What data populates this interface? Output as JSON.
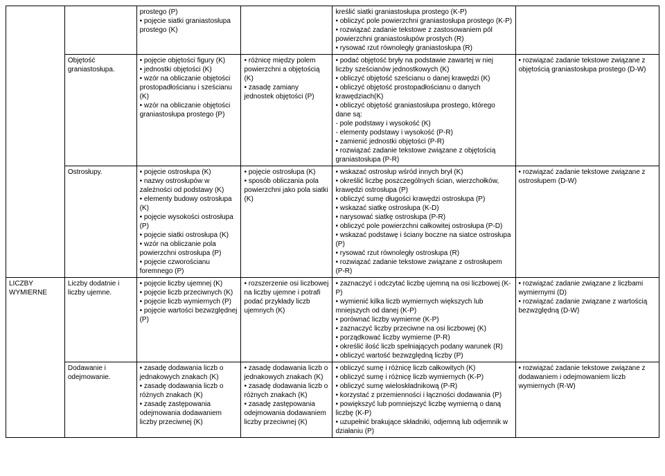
{
  "rows": {
    "r0": {
      "c1": "",
      "c2": "",
      "c3": "prostego (P)\n• pojęcie siatki graniastosłupa prostego (K)",
      "c4": "",
      "c5": "kreślić siatki graniastosłupa prostego (K-P)\n• obliczyć pole powierzchni graniastosłupa prostego (K-P)\n• rozwiązać zadanie tekstowe z zastosowaniem pól powierzchni graniastosłupów prostych (R)\n• rysować rzut równoległy graniastosłupa (R)",
      "c6": ""
    },
    "r1": {
      "c1": "",
      "c2": "Objętość graniastosłupa.",
      "c3": "• pojęcie objętości figury (K)\n• jednostki objętości (K)\n• wzór na obliczanie objętości prostopadłościanu i sześcianu (K)\n• wzór na obliczanie objętości graniastosłupa prostego (P)",
      "c4": "• różnicę między polem powierzchni a objętością (K)\n• zasadę zamiany jednostek objętości (P)",
      "c5": "• podać objętość bryły na podstawie zawartej w niej liczby sześcianów jednostkowych (K)\n• obliczyć objętość sześcianu o danej krawędzi (K)\n• obliczyć objętość prostopadłościanu o danych krawędziach(K)\n• obliczyć objętość graniastosłupa prostego, którego dane są:\n- pole podstawy i wysokość (K)\n- elementy podstawy i wysokość (P-R)\n• zamienić jednostki objętości (P-R)\n• rozwiązać zadanie tekstowe związane z objętością graniastosłupa (P-R)",
      "c6": "• rozwiązać zadanie tekstowe związane z objętością graniastosłupa prostego (D-W)"
    },
    "r2": {
      "c1": "",
      "c2": "Ostrosłupy.",
      "c3": "• pojęcie ostrosłupa (K)\n• nazwy ostrosłupów w zależności od podstawy (K)\n• elementy budowy ostrosłupa (K)\n• pojęcie wysokości ostrosłupa (P)\n• pojęcie siatki ostrosłupa (K)\n• wzór na obliczanie pola powierzchni ostrosłupa (P)\n• pojęcie czworościanu foremnego (P)",
      "c4": "• pojęcie ostrosłupa (K)\n• sposób obliczania pola powierzchni jako pola siatki (K)",
      "c5": "• wskazać ostrosłup wśród innych brył (K)\n• określić liczbę poszczególnych ścian, wierzchołków, krawędzi ostrosłupa (P)\n• obliczyć sumę długości krawędzi ostrosłupa (P)\n• wskazać siatkę ostrosłupa (K-D)\n• narysować siatkę ostrosłupa (P-R)\n• obliczyć pole powierzchni całkowitej ostrosłupa (P-D)\n• wskazać podstawę i ściany boczne na siatce ostrosłupa (P)\n• rysować rzut równoległy ostrosłupa (R)\n• rozwiązać zadanie tekstowe związane z ostrosłupem (P-R)",
      "c6": "• rozwiązać zadanie tekstowe związane z ostrosłupem (D-W)"
    },
    "r3": {
      "c1": "LICZBY WYMIERNE",
      "c2": "Liczby dodatnie i liczby ujemne.",
      "c3": "• pojęcie liczby ujemnej (K)\n• pojęcie liczb przeciwnych (K)\n• pojęcie liczb wymiernych (P)\n• pojęcie wartości bezwzględnej (P)",
      "c4": "• rozszerzenie osi liczbowej na liczby ujemne i potrafi podać przykłady liczb ujemnych (K)",
      "c5": "• zaznaczyć i odczytać liczbę ujemną na osi liczbowej (K-P)\n• wymienić kilka liczb wymiernych większych lub mniejszych od danej (K-P)\n• porównać liczby wymierne (K-P)\n• zaznaczyć liczby przeciwne na osi liczbowej (K)\n• porządkować liczby wymierne (P-R)\n• określić ilość liczb spełniających podany warunek (R)\n• obliczyć wartość bezwzględną liczby (P)",
      "c6": "• rozwiązać zadanie związane z liczbami wymiernymi (D)\n• rozwiązać zadanie związane z wartością bezwzględną (D-W)"
    },
    "r4": {
      "c1": "",
      "c2": "Dodawanie i odejmowanie.",
      "c3": "• zasadę dodawania liczb o jednakowych znakach (K)\n• zasadę dodawania liczb o różnych znakach (K)\n• zasadę zastępowania odejmowania dodawaniem liczby przeciwnej (K)",
      "c4": "• zasadę dodawania liczb o jednakowych znakach (K)\n• zasadę dodawania liczb o różnych znakach (K)\n• zasadę zastępowania odejmowania dodawaniem liczby przeciwnej (K)",
      "c5": "• obliczyć sumę i różnicę liczb całkowitych (K)\n• obliczyć sumę i różnicę liczb wymiernych (K-P)\n• obliczyć sumę wieloskładnikową (P-R)\n• korzystać z przemienności i łączności dodawania (P)\n• powiększyć lub pomniejszyć liczbę wymierną o daną liczbę (K-P)\n• uzupełnić brakujące składniki, odjemną lub odjemnik w działaniu (P)",
      "c6": "• rozwiązać zadanie tekstowe związane z dodawaniem i odejmowaniem liczb wymiernych (R-W)"
    }
  }
}
